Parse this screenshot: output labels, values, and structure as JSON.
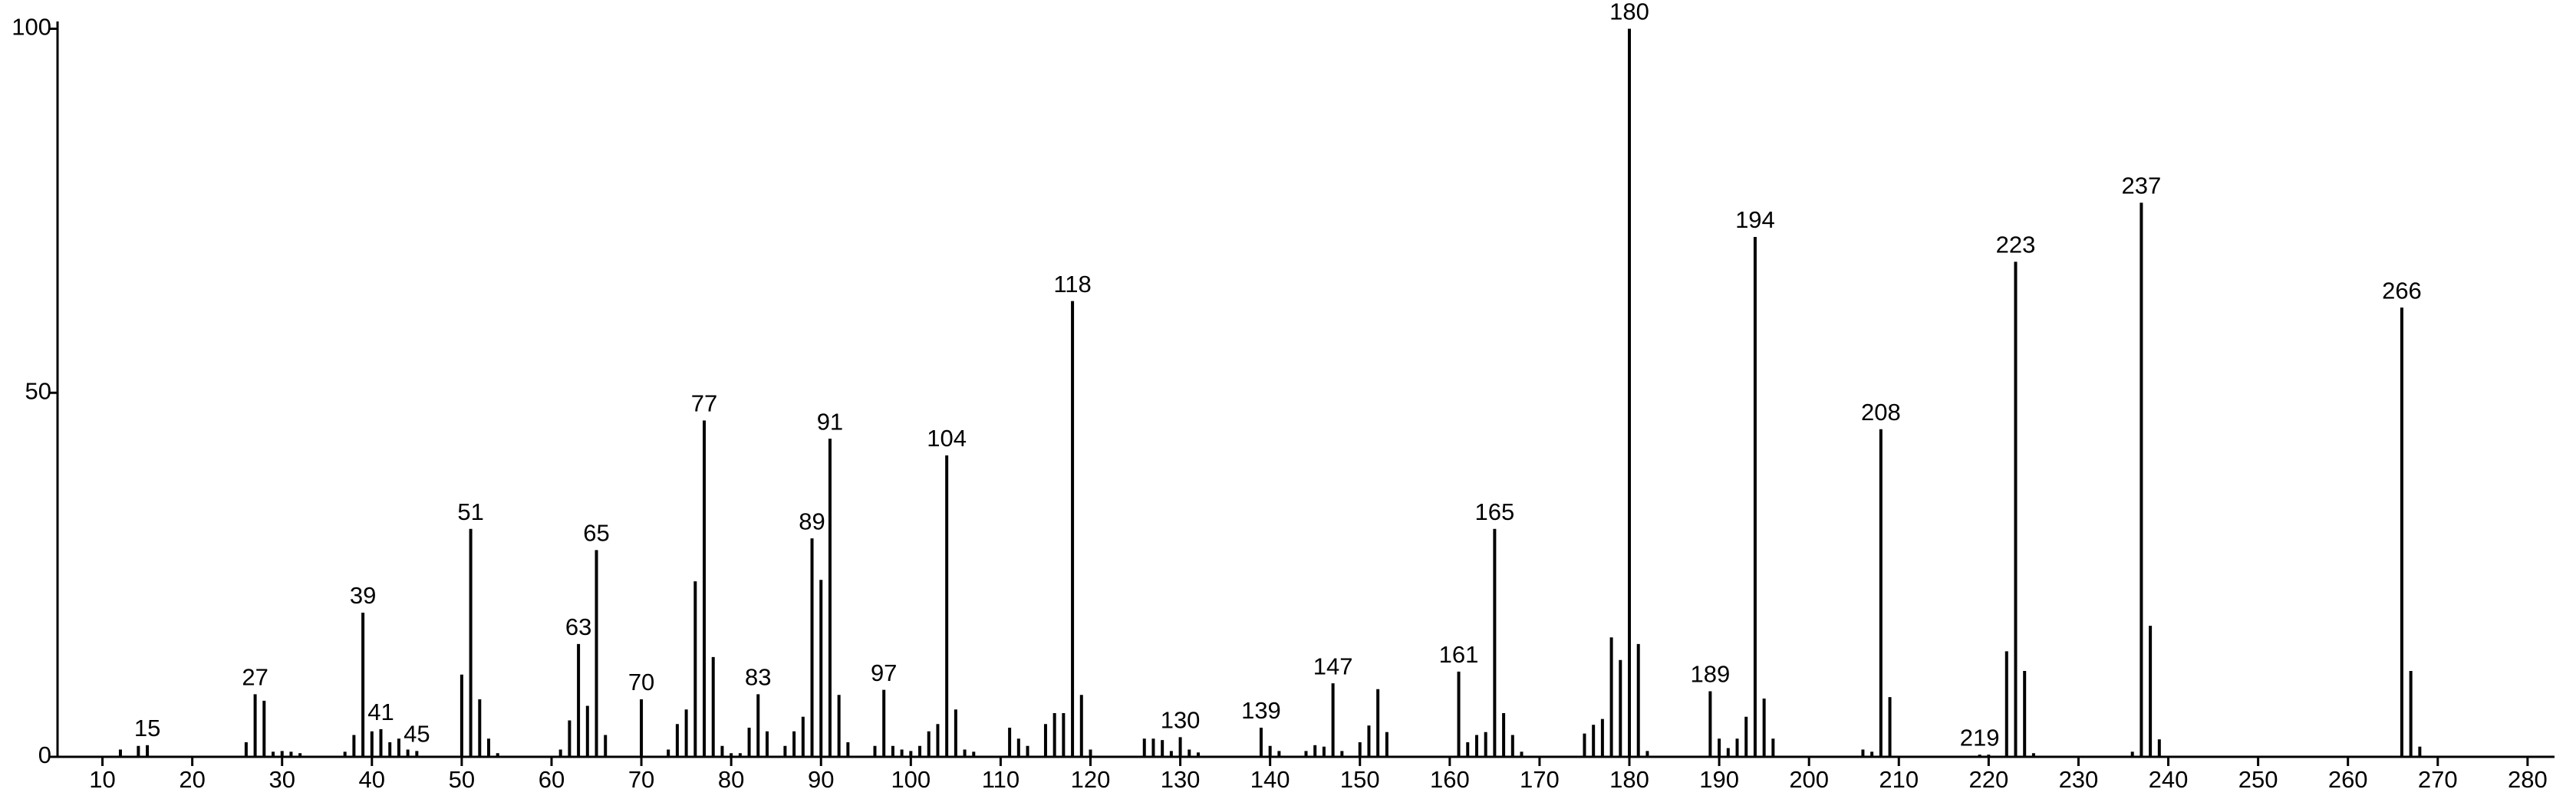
{
  "chart_data": {
    "type": "bar",
    "color": "#000000",
    "x": [
      12,
      14,
      15,
      26,
      27,
      28,
      29,
      30,
      31,
      32,
      37,
      38,
      39,
      40,
      41,
      42,
      43,
      44,
      45,
      50,
      51,
      52,
      53,
      54,
      61,
      62,
      63,
      64,
      65,
      66,
      70,
      73,
      74,
      75,
      76,
      77,
      78,
      79,
      80,
      81,
      82,
      83,
      84,
      86,
      87,
      88,
      89,
      90,
      91,
      92,
      93,
      96,
      97,
      98,
      99,
      100,
      101,
      102,
      103,
      104,
      105,
      106,
      107,
      111,
      112,
      113,
      115,
      116,
      117,
      118,
      119,
      120,
      126,
      127,
      128,
      129,
      130,
      131,
      132,
      139,
      140,
      141,
      144,
      145,
      146,
      147,
      148,
      150,
      151,
      152,
      153,
      161,
      162,
      163,
      164,
      165,
      166,
      167,
      168,
      175,
      176,
      177,
      178,
      179,
      180,
      181,
      182,
      189,
      190,
      191,
      192,
      193,
      194,
      195,
      196,
      206,
      207,
      208,
      209,
      219,
      220,
      222,
      223,
      224,
      225,
      236,
      237,
      238,
      239,
      266,
      267,
      268
    ],
    "values": [
      1,
      1.5,
      1.6,
      2,
      8.6,
      7.7,
      0.7,
      0.8,
      0.7,
      0.5,
      0.7,
      3,
      19.8,
      3.5,
      3.8,
      2,
      2.5,
      1,
      0.8,
      11.3,
      31.3,
      7.9,
      2.5,
      0.5,
      1,
      5,
      15.5,
      7,
      28.4,
      3,
      7.9,
      1,
      4.5,
      6.5,
      24.1,
      46.2,
      13.7,
      1.5,
      0.5,
      0.5,
      4,
      8.6,
      3.5,
      1.5,
      3.5,
      5.5,
      30,
      24.3,
      43.7,
      8.5,
      2,
      1.5,
      9.2,
      1.5,
      1,
      0.8,
      1.5,
      3.5,
      4.5,
      41.4,
      6.5,
      1,
      0.7,
      4,
      2.5,
      1.5,
      4.5,
      6,
      6,
      62.6,
      8.5,
      1,
      2.5,
      2.5,
      2.3,
      0.8,
      2.7,
      1,
      0.6,
      4,
      1.5,
      0.8,
      0.8,
      1.6,
      1.4,
      10.1,
      0.8,
      2,
      4.3,
      9.3,
      3.4,
      11.7,
      2,
      3,
      3.4,
      31.3,
      6,
      3,
      0.7,
      3.2,
      4.4,
      5.2,
      16.4,
      13.3,
      100,
      15.5,
      0.8,
      9,
      2.5,
      1.2,
      2.5,
      5.5,
      71.4,
      8,
      2.5,
      1,
      0.7,
      45,
      8.2,
      0.3,
      0.3,
      14.5,
      68,
      11.8,
      0.5,
      0.7,
      76.1,
      18,
      2.4,
      61.7,
      11.8,
      1.4
    ],
    "annotations": [
      15,
      27,
      39,
      41,
      45,
      51,
      63,
      65,
      70,
      77,
      83,
      89,
      91,
      97,
      104,
      118,
      130,
      139,
      147,
      161,
      165,
      180,
      189,
      194,
      208,
      219,
      223,
      237,
      266
    ],
    "xlim": [
      5,
      283
    ],
    "ylim": [
      0,
      101
    ],
    "xticks": [
      10,
      20,
      30,
      40,
      50,
      60,
      70,
      80,
      90,
      100,
      110,
      120,
      130,
      140,
      150,
      160,
      170,
      180,
      190,
      200,
      210,
      220,
      230,
      240,
      250,
      260,
      270,
      280
    ],
    "yticks": [
      0,
      50,
      100
    ]
  }
}
